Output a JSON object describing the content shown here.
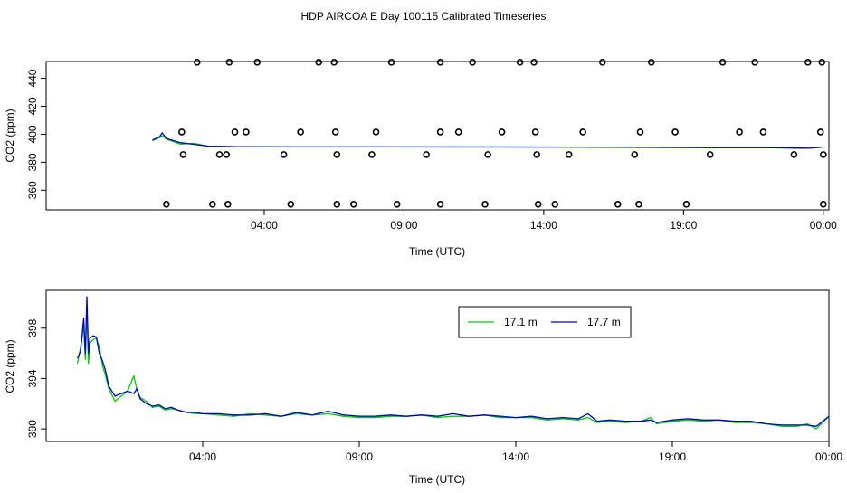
{
  "title": "HDP AIRCOA E  Day 100115  Calibrated Timeseries",
  "chart_data": [
    {
      "type": "line",
      "xlabel": "Time (UTC)",
      "ylabel": "CO2 (ppm)",
      "x_unit": "hours since 00:00 UTC",
      "xlim": [
        -3.8,
        24.2
      ],
      "ylim": [
        346,
        452
      ],
      "x_ticks": [
        {
          "value": 4,
          "label": "04:00"
        },
        {
          "value": 9,
          "label": "09:00"
        },
        {
          "value": 14,
          "label": "14:00"
        },
        {
          "value": 19,
          "label": "19:00"
        },
        {
          "value": 24,
          "label": "00:00"
        }
      ],
      "y_ticks": [
        {
          "value": 360,
          "label": "360"
        },
        {
          "value": 380,
          "label": "380"
        },
        {
          "value": 400,
          "label": "400"
        },
        {
          "value": 420,
          "label": "420"
        },
        {
          "value": 440,
          "label": "440"
        }
      ],
      "series": [
        {
          "color": "#00cc00",
          "x": [
            0.0,
            0.25,
            0.35,
            0.5,
            1.0,
            1.5,
            2.0,
            3.0,
            5.0,
            8.0,
            12.0,
            16.0,
            20.0,
            22.0,
            23.5,
            24.0
          ],
          "values": [
            395.5,
            397.5,
            399.0,
            396.5,
            393.0,
            393.5,
            391.5,
            391.2,
            391.0,
            391.0,
            391.0,
            390.8,
            390.5,
            390.5,
            390.0,
            390.8
          ]
        },
        {
          "color": "#0000cc",
          "x": [
            0.0,
            0.25,
            0.35,
            0.5,
            1.0,
            1.5,
            2.0,
            3.0,
            5.0,
            8.0,
            12.0,
            16.0,
            20.0,
            22.0,
            23.5,
            24.0
          ],
          "values": [
            395.8,
            398.0,
            401.0,
            397.0,
            394.0,
            392.8,
            391.5,
            391.2,
            391.0,
            391.0,
            390.9,
            390.8,
            390.5,
            390.5,
            390.0,
            391.0
          ]
        }
      ],
      "calibration_points": [
        {
          "x": 0.5,
          "y": 350.0
        },
        {
          "x": 1.05,
          "y": 401.6
        },
        {
          "x": 1.1,
          "y": 385.5
        },
        {
          "x": 1.6,
          "y": 451.5
        },
        {
          "x": 2.15,
          "y": 350.0
        },
        {
          "x": 2.4,
          "y": 385.5
        },
        {
          "x": 2.75,
          "y": 451.5
        },
        {
          "x": 2.95,
          "y": 401.6
        },
        {
          "x": 2.65,
          "y": 385.5
        },
        {
          "x": 2.7,
          "y": 350.0
        },
        {
          "x": 3.35,
          "y": 401.6
        },
        {
          "x": 3.75,
          "y": 451.5
        },
        {
          "x": 4.7,
          "y": 385.5
        },
        {
          "x": 4.95,
          "y": 350.0
        },
        {
          "x": 5.3,
          "y": 401.6
        },
        {
          "x": 5.95,
          "y": 451.5
        },
        {
          "x": 6.5,
          "y": 451.5
        },
        {
          "x": 6.55,
          "y": 401.6
        },
        {
          "x": 6.6,
          "y": 385.5
        },
        {
          "x": 6.6,
          "y": 350.0
        },
        {
          "x": 7.2,
          "y": 350.0
        },
        {
          "x": 7.85,
          "y": 385.5
        },
        {
          "x": 8.0,
          "y": 401.6
        },
        {
          "x": 8.55,
          "y": 451.5
        },
        {
          "x": 8.75,
          "y": 350.0
        },
        {
          "x": 9.8,
          "y": 385.5
        },
        {
          "x": 10.3,
          "y": 401.6
        },
        {
          "x": 10.3,
          "y": 451.5
        },
        {
          "x": 10.3,
          "y": 350.0
        },
        {
          "x": 10.95,
          "y": 401.6
        },
        {
          "x": 11.45,
          "y": 451.5
        },
        {
          "x": 11.9,
          "y": 350.0
        },
        {
          "x": 12.0,
          "y": 385.5
        },
        {
          "x": 12.5,
          "y": 401.6
        },
        {
          "x": 13.15,
          "y": 451.5
        },
        {
          "x": 13.65,
          "y": 451.5
        },
        {
          "x": 13.7,
          "y": 401.6
        },
        {
          "x": 13.75,
          "y": 385.5
        },
        {
          "x": 13.8,
          "y": 350.0
        },
        {
          "x": 14.4,
          "y": 350.0
        },
        {
          "x": 14.9,
          "y": 385.5
        },
        {
          "x": 15.4,
          "y": 401.6
        },
        {
          "x": 16.1,
          "y": 451.5
        },
        {
          "x": 16.65,
          "y": 350.0
        },
        {
          "x": 17.25,
          "y": 385.5
        },
        {
          "x": 17.4,
          "y": 350.0
        },
        {
          "x": 17.45,
          "y": 401.6
        },
        {
          "x": 17.85,
          "y": 451.5
        },
        {
          "x": 18.7,
          "y": 401.6
        },
        {
          "x": 19.1,
          "y": 350.0
        },
        {
          "x": 19.95,
          "y": 385.5
        },
        {
          "x": 20.4,
          "y": 451.5
        },
        {
          "x": 21.0,
          "y": 401.6
        },
        {
          "x": 21.55,
          "y": 451.5
        },
        {
          "x": 21.85,
          "y": 401.6
        },
        {
          "x": 22.95,
          "y": 385.5
        },
        {
          "x": 23.45,
          "y": 451.5
        },
        {
          "x": 23.9,
          "y": 401.6
        },
        {
          "x": 23.95,
          "y": 451.5
        },
        {
          "x": 24.0,
          "y": 385.5
        },
        {
          "x": 24.0,
          "y": 350.0
        }
      ]
    },
    {
      "type": "line",
      "xlabel": "Time (UTC)",
      "ylabel": "CO2 (ppm)",
      "x_unit": "hours since 00:00 UTC",
      "xlim": [
        -1.0,
        24.0
      ],
      "ylim": [
        389.0,
        401.0
      ],
      "x_ticks": [
        {
          "value": 4,
          "label": "04:00"
        },
        {
          "value": 9,
          "label": "09:00"
        },
        {
          "value": 14,
          "label": "14:00"
        },
        {
          "value": 19,
          "label": "19:00"
        },
        {
          "value": 24,
          "label": "00:00"
        }
      ],
      "y_ticks": [
        {
          "value": 390,
          "label": "390"
        },
        {
          "value": 394,
          "label": "394"
        },
        {
          "value": 398,
          "label": "398"
        }
      ],
      "legend": {
        "position": "top-center"
      },
      "series": [
        {
          "name": "17.1 m",
          "color": "#00cc00",
          "x": [
            0.0,
            0.1,
            0.2,
            0.25,
            0.3,
            0.35,
            0.4,
            0.5,
            0.6,
            0.7,
            0.8,
            0.9,
            1.0,
            1.2,
            1.4,
            1.6,
            1.8,
            1.9,
            2.0,
            2.2,
            2.4,
            2.6,
            2.8,
            3.0,
            3.2,
            3.5,
            3.8,
            4.0,
            4.5,
            5.0,
            5.5,
            6.0,
            6.5,
            7.0,
            7.5,
            8.0,
            8.5,
            9.0,
            9.5,
            10.0,
            10.5,
            11.0,
            11.5,
            12.0,
            12.5,
            13.0,
            13.5,
            14.0,
            14.5,
            15.0,
            15.5,
            16.0,
            16.3,
            16.6,
            17.0,
            17.5,
            18.0,
            18.3,
            18.5,
            19.0,
            19.5,
            20.0,
            20.5,
            21.0,
            21.5,
            22.0,
            22.5,
            23.0,
            23.3,
            23.6,
            24.0
          ],
          "values": [
            395.2,
            396.5,
            398.2,
            395.5,
            399.5,
            395.2,
            396.8,
            397.1,
            397.2,
            396.5,
            395.0,
            394.2,
            393.2,
            392.2,
            392.6,
            393.0,
            394.2,
            393.1,
            392.5,
            392.2,
            391.7,
            391.8,
            391.5,
            391.6,
            391.5,
            391.3,
            391.2,
            391.2,
            391.1,
            391.0,
            391.2,
            391.1,
            391.0,
            391.2,
            391.1,
            391.2,
            391.0,
            390.9,
            390.9,
            391.0,
            391.0,
            391.1,
            390.9,
            391.0,
            391.0,
            391.1,
            390.9,
            390.9,
            390.9,
            390.7,
            390.8,
            390.7,
            390.9,
            390.5,
            390.6,
            390.5,
            390.6,
            390.9,
            390.4,
            390.6,
            390.7,
            390.6,
            390.7,
            390.5,
            390.5,
            390.4,
            390.2,
            390.2,
            390.4,
            390.0,
            391.0
          ]
        },
        {
          "name": "17.7 m",
          "color": "#0000cc",
          "x": [
            0.0,
            0.1,
            0.2,
            0.25,
            0.3,
            0.35,
            0.4,
            0.5,
            0.6,
            0.7,
            0.8,
            0.9,
            1.0,
            1.2,
            1.4,
            1.6,
            1.8,
            1.9,
            2.0,
            2.2,
            2.4,
            2.6,
            2.8,
            3.0,
            3.2,
            3.5,
            3.8,
            4.0,
            4.5,
            5.0,
            5.5,
            6.0,
            6.5,
            7.0,
            7.5,
            8.0,
            8.5,
            9.0,
            9.5,
            10.0,
            10.5,
            11.0,
            11.5,
            12.0,
            12.5,
            13.0,
            13.5,
            14.0,
            14.5,
            15.0,
            15.5,
            16.0,
            16.3,
            16.6,
            17.0,
            17.5,
            18.0,
            18.3,
            18.5,
            19.0,
            19.5,
            20.0,
            20.5,
            21.0,
            21.5,
            22.0,
            22.5,
            23.0,
            23.3,
            23.6,
            24.0
          ],
          "values": [
            395.6,
            396.2,
            398.8,
            396.0,
            400.5,
            396.0,
            397.2,
            397.4,
            397.3,
            396.0,
            395.4,
            394.6,
            393.4,
            392.6,
            392.8,
            393.0,
            392.8,
            393.2,
            392.4,
            392.0,
            391.8,
            391.9,
            391.6,
            391.7,
            391.5,
            391.3,
            391.3,
            391.2,
            391.2,
            391.1,
            391.1,
            391.2,
            391.0,
            391.3,
            391.1,
            391.4,
            391.1,
            391.0,
            391.0,
            391.1,
            391.0,
            391.1,
            391.0,
            391.2,
            391.0,
            391.1,
            391.0,
            390.9,
            391.0,
            390.8,
            390.9,
            390.8,
            391.2,
            390.6,
            390.7,
            390.6,
            390.6,
            390.7,
            390.5,
            390.7,
            390.8,
            390.7,
            390.7,
            390.6,
            390.6,
            390.4,
            390.3,
            390.3,
            390.3,
            390.2,
            391.0
          ]
        }
      ]
    }
  ]
}
